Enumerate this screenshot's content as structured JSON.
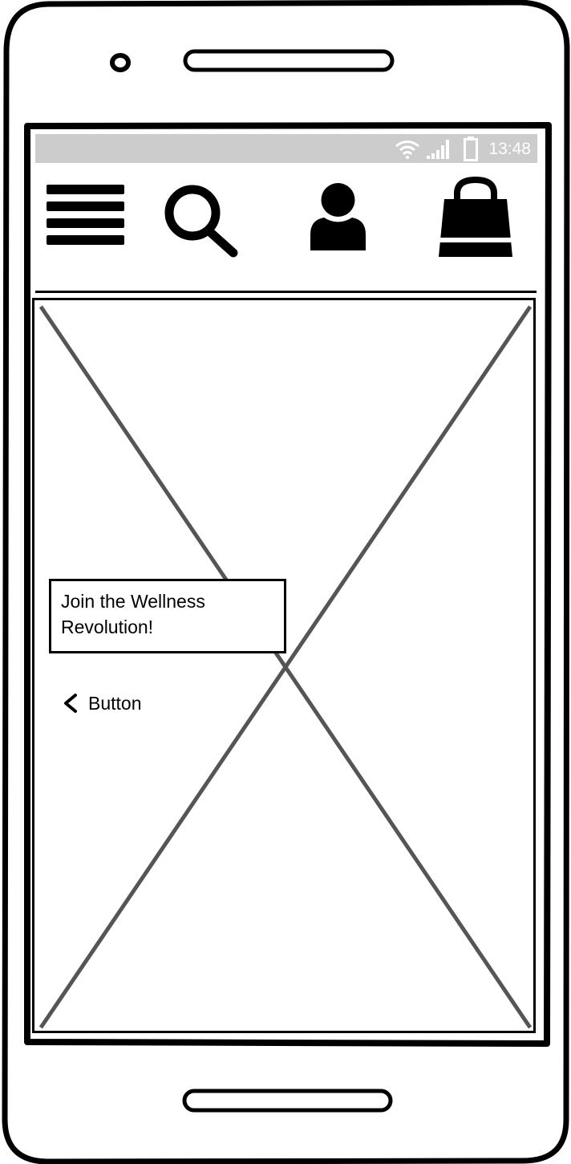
{
  "status_bar": {
    "time": "13:48",
    "icons": [
      "wifi-icon",
      "signal-icon",
      "battery-icon"
    ]
  },
  "header": {
    "icons": [
      "menu-icon",
      "search-icon",
      "user-icon",
      "shopping-bag-icon"
    ]
  },
  "hero": {
    "caption": "Join the Wellness Revolution!",
    "image_placeholder": true
  },
  "back_button": {
    "label": "Button"
  },
  "colors": {
    "status_bar_bg": "#cccccc",
    "frame_stroke": "#000000",
    "placeholder_cross": "#555555"
  }
}
